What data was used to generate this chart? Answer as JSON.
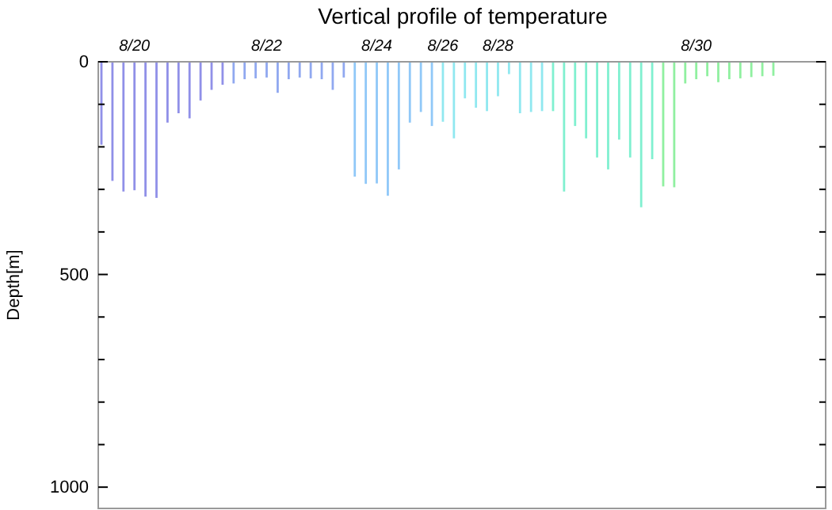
{
  "chart_data": {
    "type": "bar",
    "title": "Vertical profile of temperature",
    "ylabel": "Depth[m]",
    "categories": [
      null,
      null,
      null,
      "8/20",
      null,
      null,
      null,
      null,
      null,
      null,
      null,
      null,
      null,
      null,
      null,
      "8/22",
      null,
      null,
      null,
      null,
      null,
      null,
      null,
      null,
      null,
      "8/24",
      null,
      null,
      null,
      null,
      null,
      "8/26",
      null,
      null,
      null,
      null,
      "8/28",
      null,
      null,
      null,
      null,
      null,
      null,
      null,
      null,
      null,
      null,
      null,
      null,
      null,
      null,
      null,
      null,
      null,
      "8/30",
      null,
      null,
      null,
      null,
      null,
      null,
      null
    ],
    "values": [
      195,
      280,
      305,
      302,
      317,
      320,
      143,
      121,
      133,
      91,
      66,
      54,
      51,
      41,
      39,
      37,
      73,
      41,
      37,
      39,
      41,
      66,
      37,
      270,
      287,
      286,
      315,
      253,
      143,
      118,
      151,
      141,
      180,
      86,
      108,
      116,
      81,
      29,
      121,
      118,
      116,
      116,
      305,
      151,
      180,
      225,
      253,
      183,
      225,
      342,
      229,
      293,
      295,
      51,
      41,
      34,
      48,
      41,
      39,
      36,
      34,
      33
    ],
    "colors": [
      "#9090e8",
      "#9090e8",
      "#9090e8",
      "#9090e8",
      "#9090e8",
      "#9090e8",
      "#9090e8",
      "#9090e8",
      "#9090e8",
      "#9090e8",
      "#9090e8",
      "#9090e8",
      "#90a8f0",
      "#90a8f0",
      "#90a8f0",
      "#90a8f0",
      "#90a8f0",
      "#90a8f0",
      "#90a8f0",
      "#90a8f0",
      "#90a8f0",
      "#90a8f0",
      "#90a8f0",
      "#90c8f8",
      "#90c8f8",
      "#90c8f8",
      "#90c8f8",
      "#90c8f8",
      "#90c8f8",
      "#90c8f8",
      "#90c8f8",
      "#90e8f0",
      "#90e8f0",
      "#90e8f0",
      "#90e8f0",
      "#90e8f0",
      "#90e8f0",
      "#90e8f0",
      "#90e8f0",
      "#90e8f0",
      "#90e8f0",
      "#80f0d0",
      "#80f0d0",
      "#80f0d0",
      "#80f0d0",
      "#80f0d0",
      "#80f0d0",
      "#80f0d0",
      "#80f0d0",
      "#80f0d0",
      "#80f0d0",
      "#90f0a0",
      "#90f0a0",
      "#90f0a0",
      "#90f0a0",
      "#90f0a0",
      "#90f0a0",
      "#90f0a0",
      "#90f0a0",
      "#90f0a0",
      "#90f0a0",
      "#90f0a0"
    ],
    "ylim": [
      1050,
      0
    ],
    "yticks": [
      0,
      {
        "value": 100,
        "label": null
      },
      {
        "value": 200,
        "label": null
      },
      {
        "value": 300,
        "label": null
      },
      {
        "value": 400,
        "label": null
      },
      500,
      {
        "value": 600,
        "label": null
      },
      {
        "value": 700,
        "label": null
      },
      {
        "value": 800,
        "label": null
      },
      {
        "value": 900,
        "label": null
      },
      1000
    ]
  }
}
